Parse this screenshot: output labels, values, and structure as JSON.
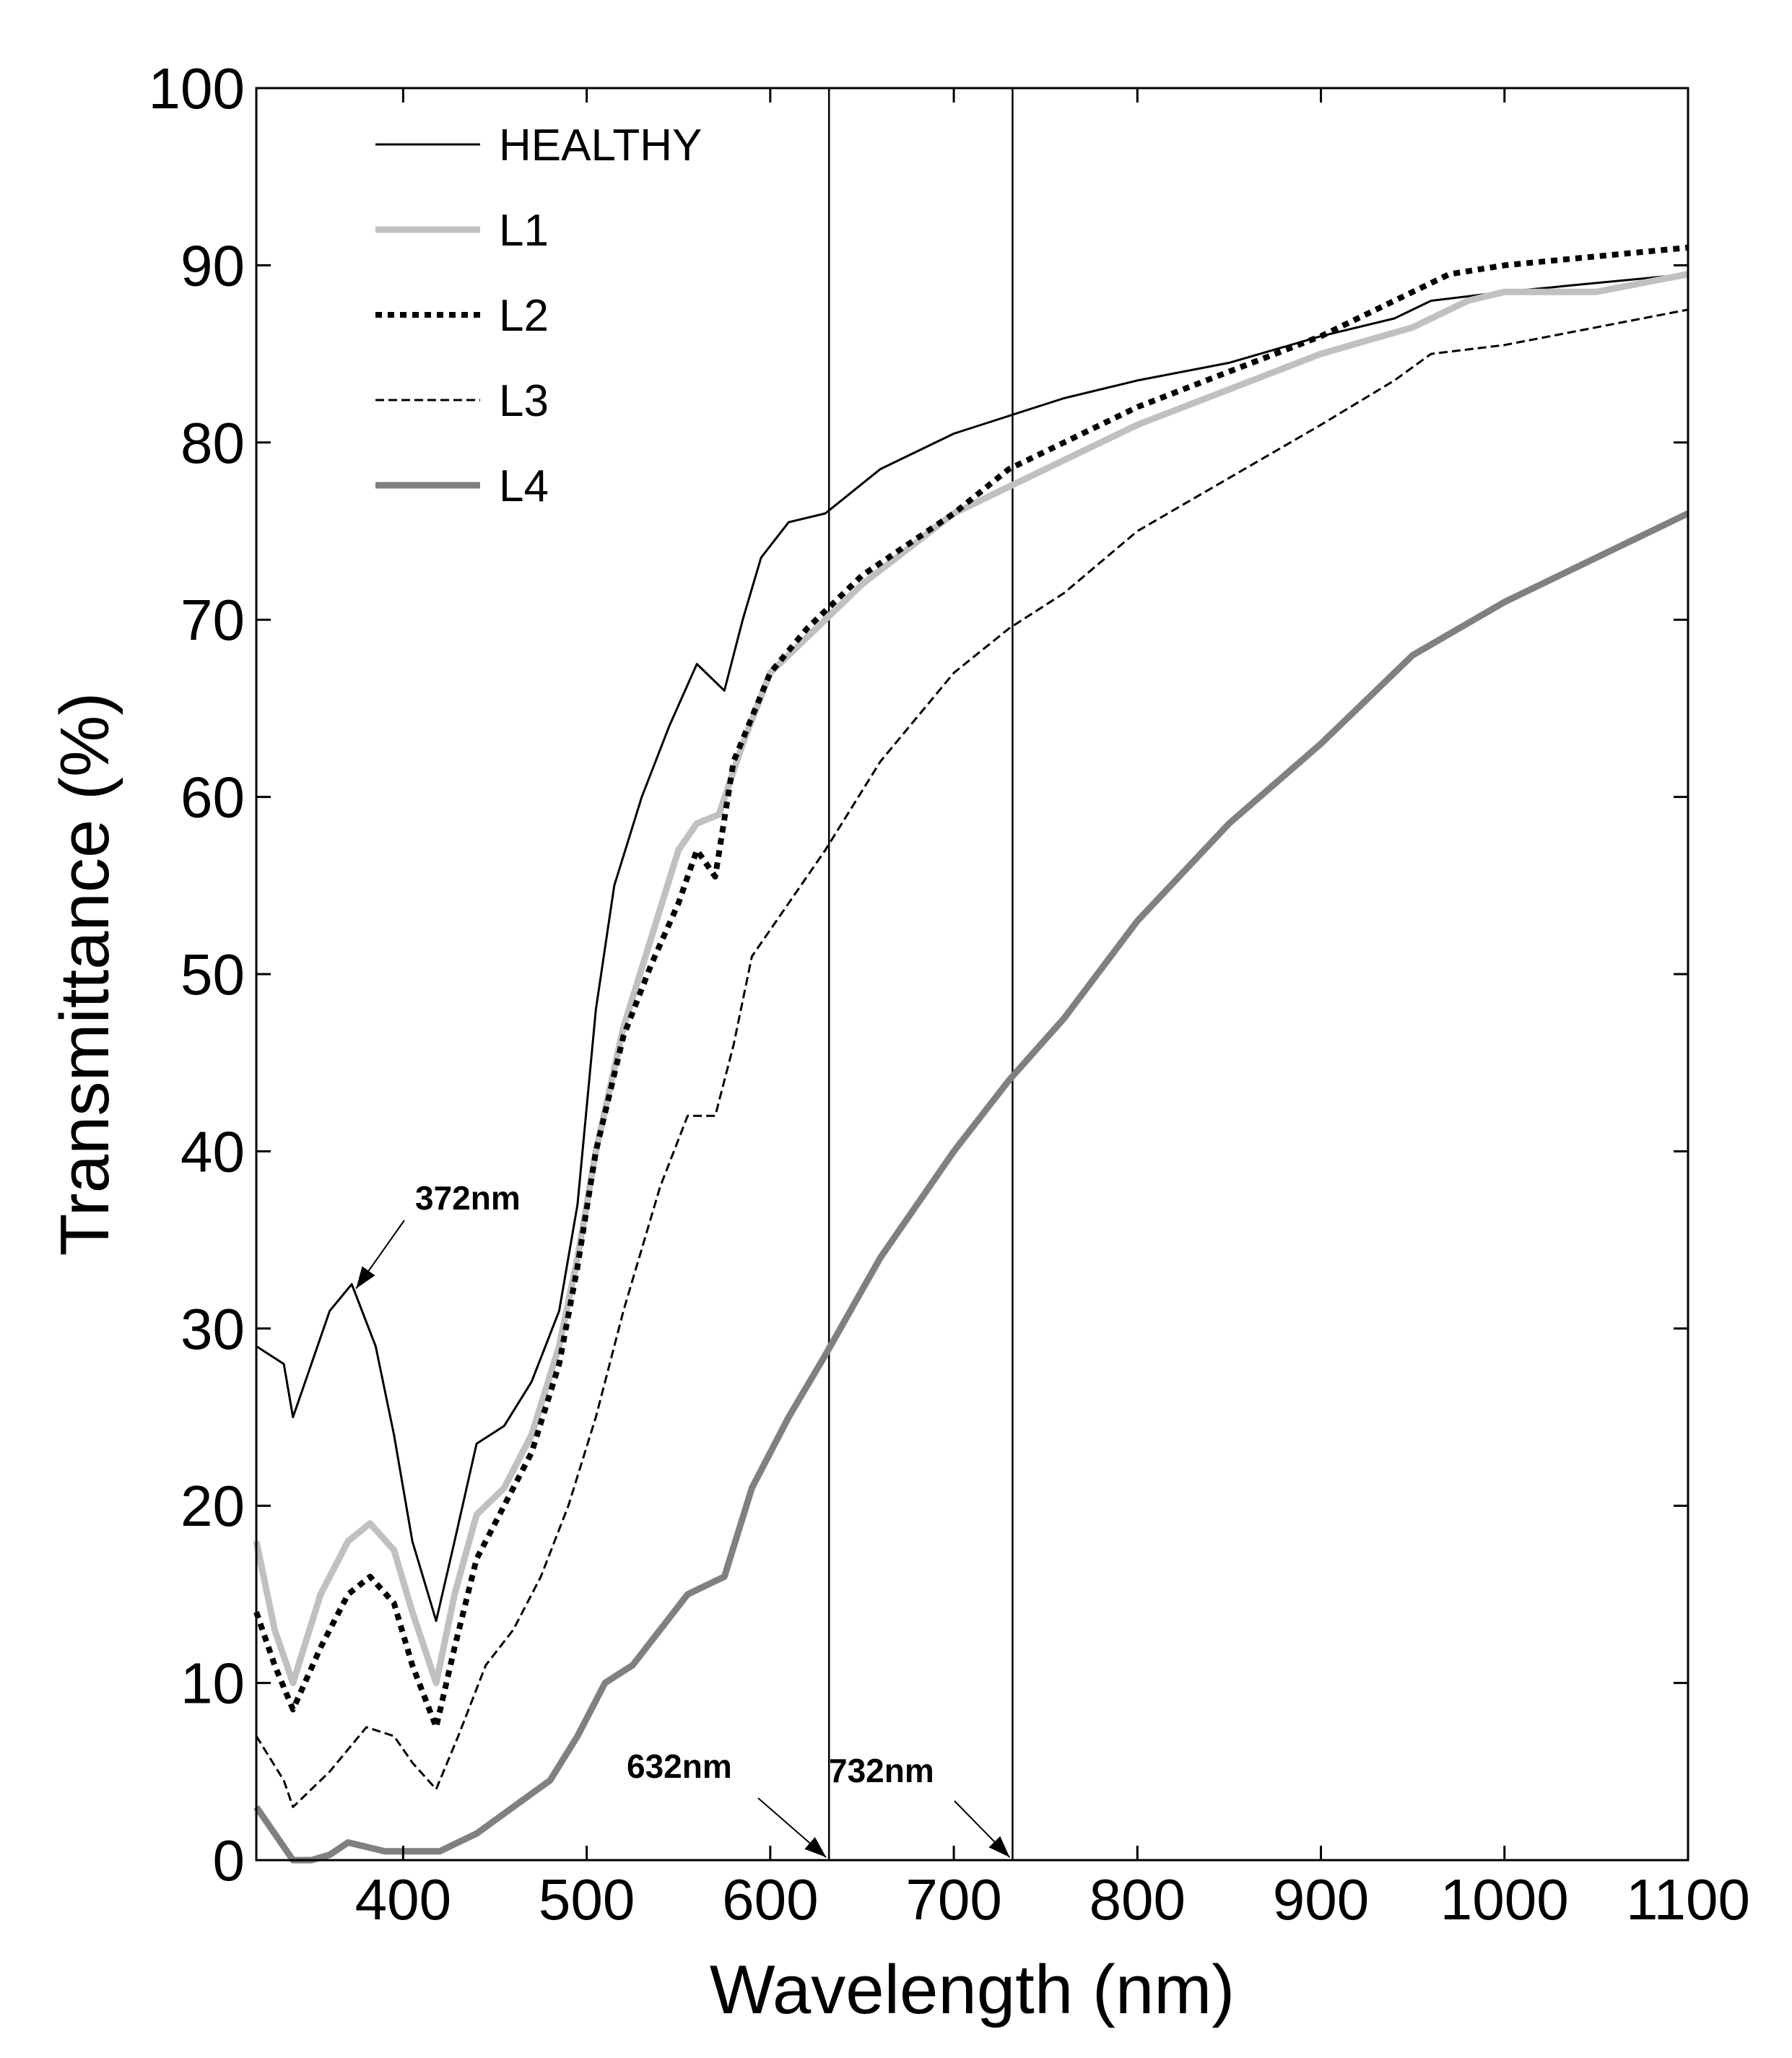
{
  "chart_data": {
    "type": "line",
    "title": "",
    "xlabel": "Wavelength (nm)",
    "ylabel": "Transmittance (%)",
    "xlim": [
      320,
      1100
    ],
    "ylim": [
      0,
      100
    ],
    "xticks": [
      400,
      500,
      600,
      700,
      800,
      900,
      1000,
      1100
    ],
    "yticks": [
      0,
      10,
      20,
      30,
      40,
      50,
      60,
      70,
      80,
      90,
      100
    ],
    "grid": false,
    "legend_position": "top-left",
    "series": [
      {
        "name": "HEALTHY",
        "color": "#000000",
        "width": 3,
        "dash": "",
        "points": [
          [
            320,
            29
          ],
          [
            335,
            28
          ],
          [
            340,
            25
          ],
          [
            350,
            28
          ],
          [
            360,
            31
          ],
          [
            372,
            32.5
          ],
          [
            385,
            29
          ],
          [
            395,
            24
          ],
          [
            405,
            18
          ],
          [
            418,
            13.5
          ],
          [
            428,
            18
          ],
          [
            440,
            23.5
          ],
          [
            455,
            24.5
          ],
          [
            470,
            27
          ],
          [
            485,
            31
          ],
          [
            495,
            37
          ],
          [
            505,
            48
          ],
          [
            515,
            55
          ],
          [
            530,
            60
          ],
          [
            545,
            64
          ],
          [
            560,
            67.5
          ],
          [
            575,
            66
          ],
          [
            585,
            70
          ],
          [
            595,
            73.5
          ],
          [
            610,
            75.5
          ],
          [
            630,
            76
          ],
          [
            660,
            78.5
          ],
          [
            700,
            80.5
          ],
          [
            730,
            81.5
          ],
          [
            760,
            82.5
          ],
          [
            800,
            83.5
          ],
          [
            850,
            84.5
          ],
          [
            900,
            86
          ],
          [
            940,
            87
          ],
          [
            960,
            88
          ],
          [
            1000,
            88.5
          ],
          [
            1050,
            89
          ],
          [
            1100,
            89.5
          ]
        ]
      },
      {
        "name": "L1",
        "color": "#c0c0c0",
        "width": 9,
        "dash": "",
        "points": [
          [
            320,
            18
          ],
          [
            330,
            13
          ],
          [
            340,
            10
          ],
          [
            355,
            15
          ],
          [
            370,
            18
          ],
          [
            382,
            19
          ],
          [
            395,
            17.5
          ],
          [
            405,
            14
          ],
          [
            418,
            10
          ],
          [
            428,
            15
          ],
          [
            440,
            19.5
          ],
          [
            455,
            21
          ],
          [
            470,
            24
          ],
          [
            485,
            29
          ],
          [
            495,
            34
          ],
          [
            505,
            40
          ],
          [
            520,
            47
          ],
          [
            535,
            52
          ],
          [
            550,
            57
          ],
          [
            560,
            58.5
          ],
          [
            572,
            59
          ],
          [
            585,
            63
          ],
          [
            600,
            67
          ],
          [
            620,
            69
          ],
          [
            650,
            72
          ],
          [
            700,
            76
          ],
          [
            730,
            77.5
          ],
          [
            760,
            79
          ],
          [
            800,
            81
          ],
          [
            850,
            83
          ],
          [
            900,
            85
          ],
          [
            950,
            86.5
          ],
          [
            980,
            88
          ],
          [
            1000,
            88.5
          ],
          [
            1050,
            88.5
          ],
          [
            1100,
            89.5
          ]
        ]
      },
      {
        "name": "L2",
        "color": "#000000",
        "width": 8,
        "dash": "9,8",
        "points": [
          [
            320,
            14
          ],
          [
            330,
            11
          ],
          [
            340,
            8.5
          ],
          [
            355,
            12
          ],
          [
            370,
            15
          ],
          [
            382,
            16
          ],
          [
            395,
            14.5
          ],
          [
            405,
            11
          ],
          [
            418,
            7.5
          ],
          [
            428,
            12
          ],
          [
            440,
            17
          ],
          [
            455,
            20
          ],
          [
            470,
            23
          ],
          [
            485,
            28
          ],
          [
            495,
            33.5
          ],
          [
            505,
            40
          ],
          [
            520,
            46.5
          ],
          [
            535,
            50.5
          ],
          [
            550,
            54
          ],
          [
            560,
            57
          ],
          [
            570,
            55.5
          ],
          [
            580,
            62
          ],
          [
            600,
            67
          ],
          [
            620,
            69.5
          ],
          [
            650,
            72.5
          ],
          [
            700,
            76
          ],
          [
            730,
            78.5
          ],
          [
            760,
            80
          ],
          [
            800,
            82
          ],
          [
            850,
            84
          ],
          [
            900,
            86
          ],
          [
            940,
            88
          ],
          [
            970,
            89.5
          ],
          [
            1000,
            90
          ],
          [
            1050,
            90.5
          ],
          [
            1100,
            91
          ]
        ]
      },
      {
        "name": "L3",
        "color": "#000000",
        "width": 3,
        "dash": "12,6",
        "points": [
          [
            320,
            7
          ],
          [
            335,
            4.5
          ],
          [
            340,
            3
          ],
          [
            360,
            5
          ],
          [
            380,
            7.5
          ],
          [
            395,
            7
          ],
          [
            405,
            5.5
          ],
          [
            418,
            4
          ],
          [
            430,
            7
          ],
          [
            445,
            11
          ],
          [
            460,
            13
          ],
          [
            475,
            16
          ],
          [
            490,
            20
          ],
          [
            505,
            25
          ],
          [
            520,
            31
          ],
          [
            540,
            38
          ],
          [
            555,
            42
          ],
          [
            570,
            42
          ],
          [
            580,
            46
          ],
          [
            590,
            51
          ],
          [
            610,
            54
          ],
          [
            630,
            57
          ],
          [
            660,
            62
          ],
          [
            700,
            67
          ],
          [
            730,
            69.5
          ],
          [
            760,
            71.5
          ],
          [
            800,
            75
          ],
          [
            850,
            78
          ],
          [
            900,
            81
          ],
          [
            940,
            83.5
          ],
          [
            960,
            85
          ],
          [
            1000,
            85.5
          ],
          [
            1050,
            86.5
          ],
          [
            1100,
            87.5
          ]
        ]
      },
      {
        "name": "L4",
        "color": "#808080",
        "width": 9,
        "dash": "",
        "points": [
          [
            320,
            3
          ],
          [
            330,
            1.5
          ],
          [
            340,
            0
          ],
          [
            350,
            0
          ],
          [
            360,
            0.3
          ],
          [
            370,
            1
          ],
          [
            390,
            0.5
          ],
          [
            420,
            0.5
          ],
          [
            440,
            1.5
          ],
          [
            460,
            3
          ],
          [
            480,
            4.5
          ],
          [
            495,
            7
          ],
          [
            510,
            10
          ],
          [
            525,
            11
          ],
          [
            540,
            13
          ],
          [
            555,
            15
          ],
          [
            565,
            15.5
          ],
          [
            575,
            16
          ],
          [
            590,
            21
          ],
          [
            610,
            25
          ],
          [
            630,
            28.5
          ],
          [
            660,
            34
          ],
          [
            700,
            40
          ],
          [
            730,
            44
          ],
          [
            760,
            47.5
          ],
          [
            800,
            53
          ],
          [
            850,
            58.5
          ],
          [
            900,
            63
          ],
          [
            950,
            68
          ],
          [
            1000,
            71
          ],
          [
            1050,
            73.5
          ],
          [
            1100,
            76
          ]
        ]
      }
    ],
    "vertical_lines": [
      632,
      732
    ],
    "annotations": [
      {
        "text": "372nm",
        "point": [
          372,
          32.5
        ]
      },
      {
        "text": "632nm",
        "point": [
          632,
          0
        ]
      },
      {
        "text": "732nm",
        "point": [
          732,
          0
        ]
      }
    ]
  }
}
